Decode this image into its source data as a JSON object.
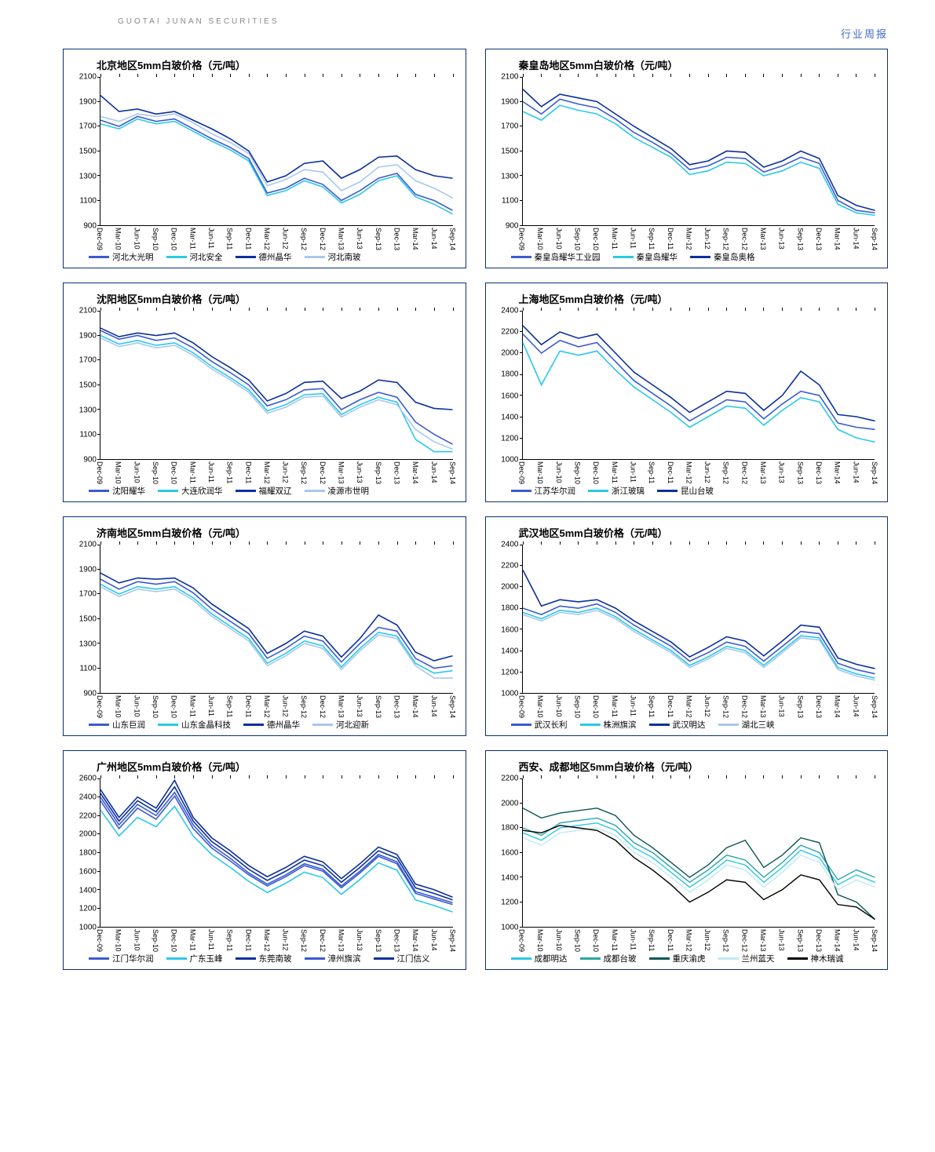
{
  "header": {
    "brand_cn": "",
    "brand_en": "GUOTAI JUNAN SECURITIES",
    "right": "行业周报"
  },
  "x_labels": [
    "Dec-09",
    "Mar-10",
    "Jun-10",
    "Sep-10",
    "Dec-10",
    "Mar-11",
    "Jun-11",
    "Sep-11",
    "Dec-11",
    "Mar-12",
    "Jun-12",
    "Sep-12",
    "Dec-12",
    "Mar-13",
    "Jun-13",
    "Sep-13",
    "Dec-13",
    "Mar-14",
    "Jun-14",
    "Sep-14"
  ],
  "palette": {
    "blue_med": "#3b5bd1",
    "cyan": "#2bc8e8",
    "blue_dark": "#0b2f9e",
    "blue_light": "#a9c7ef",
    "black": "#000000",
    "lightcyan": "#bfe9f2",
    "teal": "#2aa5a5",
    "darkteal": "#0a5757"
  },
  "panels": [
    {
      "id": "beijing",
      "title": "北京地区5mm白玻价格（元/吨）",
      "ymin": 900,
      "ymax": 2100,
      "ystep": 200,
      "series": [
        {
          "name": "河北大光明",
          "color": "blue_med",
          "vals": [
            1750,
            1700,
            1780,
            1740,
            1760,
            1680,
            1600,
            1530,
            1440,
            1160,
            1200,
            1280,
            1230,
            1100,
            1180,
            1280,
            1320,
            1150,
            1100,
            1020
          ]
        },
        {
          "name": "河北安全",
          "color": "cyan",
          "vals": [
            1720,
            1680,
            1760,
            1720,
            1740,
            1660,
            1580,
            1510,
            1420,
            1140,
            1180,
            1260,
            1210,
            1080,
            1150,
            1260,
            1300,
            1130,
            1070,
            990
          ]
        },
        {
          "name": "德州晶华",
          "color": "blue_dark",
          "vals": [
            1950,
            1820,
            1840,
            1800,
            1820,
            1750,
            1680,
            1600,
            1500,
            1250,
            1300,
            1400,
            1420,
            1280,
            1350,
            1450,
            1460,
            1350,
            1300,
            1280
          ]
        },
        {
          "name": "河北南玻",
          "color": "blue_light",
          "vals": [
            1780,
            1740,
            1800,
            1780,
            1800,
            1730,
            1640,
            1570,
            1480,
            1220,
            1270,
            1350,
            1330,
            1180,
            1250,
            1370,
            1390,
            1260,
            1200,
            1120
          ]
        }
      ]
    },
    {
      "id": "qinhuangdao",
      "title": "秦皇岛地区5mm白玻价格（元/吨）",
      "ymin": 900,
      "ymax": 2100,
      "ystep": 200,
      "series": [
        {
          "name": "秦皇岛耀华工业园",
          "color": "blue_med",
          "vals": [
            1900,
            1800,
            1920,
            1880,
            1850,
            1760,
            1650,
            1570,
            1480,
            1350,
            1380,
            1450,
            1440,
            1330,
            1380,
            1450,
            1400,
            1100,
            1020,
            1000
          ]
        },
        {
          "name": "秦皇岛耀华",
          "color": "cyan",
          "vals": [
            1820,
            1750,
            1870,
            1830,
            1800,
            1720,
            1610,
            1530,
            1450,
            1310,
            1340,
            1410,
            1400,
            1300,
            1340,
            1410,
            1360,
            1070,
            1000,
            980
          ]
        },
        {
          "name": "秦皇岛奥格",
          "color": "blue_dark",
          "vals": [
            2000,
            1860,
            1960,
            1930,
            1900,
            1800,
            1700,
            1610,
            1520,
            1390,
            1420,
            1500,
            1490,
            1370,
            1420,
            1500,
            1440,
            1140,
            1060,
            1020
          ]
        }
      ]
    },
    {
      "id": "shenyang",
      "title": "沈阳地区5mm白玻价格（元/吨）",
      "ymin": 900,
      "ymax": 2100,
      "ystep": 200,
      "series": [
        {
          "name": "沈阳耀华",
          "color": "blue_med",
          "vals": [
            1940,
            1870,
            1900,
            1860,
            1880,
            1800,
            1690,
            1600,
            1500,
            1330,
            1380,
            1460,
            1470,
            1300,
            1380,
            1440,
            1400,
            1200,
            1100,
            1020
          ]
        },
        {
          "name": "大连欣润华",
          "color": "cyan",
          "vals": [
            1900,
            1830,
            1860,
            1820,
            1840,
            1760,
            1650,
            1560,
            1460,
            1290,
            1340,
            1420,
            1430,
            1260,
            1340,
            1400,
            1360,
            1060,
            960,
            960
          ]
        },
        {
          "name": "福耀双辽",
          "color": "blue_dark",
          "vals": [
            1960,
            1890,
            1920,
            1900,
            1920,
            1840,
            1730,
            1640,
            1540,
            1370,
            1430,
            1520,
            1530,
            1390,
            1450,
            1540,
            1520,
            1360,
            1310,
            1300
          ]
        },
        {
          "name": "凌源市世明",
          "color": "blue_light",
          "vals": [
            1880,
            1810,
            1840,
            1800,
            1820,
            1740,
            1630,
            1540,
            1440,
            1270,
            1320,
            1400,
            1410,
            1240,
            1320,
            1380,
            1340,
            1140,
            1040,
            980
          ]
        }
      ]
    },
    {
      "id": "shanghai",
      "title": "上海地区5mm白玻价格（元/吨）",
      "ymin": 1000,
      "ymax": 2400,
      "ystep": 200,
      "series": [
        {
          "name": "江苏华尔润",
          "color": "blue_med",
          "vals": [
            2180,
            2000,
            2120,
            2060,
            2100,
            1920,
            1740,
            1620,
            1500,
            1360,
            1460,
            1560,
            1540,
            1380,
            1520,
            1640,
            1600,
            1340,
            1300,
            1280
          ]
        },
        {
          "name": "浙江玻璃",
          "color": "cyan",
          "vals": [
            2100,
            1700,
            2020,
            1980,
            2020,
            1840,
            1680,
            1560,
            1440,
            1300,
            1400,
            1500,
            1480,
            1320,
            1460,
            1580,
            1540,
            1280,
            1200,
            1160
          ]
        },
        {
          "name": "昆山台玻",
          "color": "blue_dark",
          "vals": [
            2260,
            2080,
            2200,
            2140,
            2180,
            2000,
            1820,
            1700,
            1580,
            1440,
            1540,
            1640,
            1620,
            1460,
            1600,
            1830,
            1700,
            1420,
            1400,
            1360
          ]
        }
      ]
    },
    {
      "id": "jinan",
      "title": "济南地区5mm白玻价格（元/吨）",
      "ymin": 900,
      "ymax": 2100,
      "ystep": 200,
      "series": [
        {
          "name": "山东巨润",
          "color": "blue_med",
          "vals": [
            1820,
            1740,
            1800,
            1780,
            1800,
            1710,
            1580,
            1480,
            1380,
            1180,
            1260,
            1360,
            1320,
            1150,
            1300,
            1430,
            1400,
            1180,
            1100,
            1120
          ]
        },
        {
          "name": "山东金晶科技",
          "color": "cyan",
          "vals": [
            1780,
            1700,
            1760,
            1740,
            1760,
            1670,
            1540,
            1440,
            1340,
            1140,
            1220,
            1320,
            1280,
            1110,
            1260,
            1390,
            1360,
            1140,
            1060,
            1080
          ]
        },
        {
          "name": "德州晶华",
          "color": "blue_dark",
          "vals": [
            1870,
            1790,
            1830,
            1820,
            1830,
            1750,
            1620,
            1520,
            1420,
            1220,
            1300,
            1400,
            1360,
            1190,
            1340,
            1530,
            1450,
            1230,
            1160,
            1200
          ]
        },
        {
          "name": "河北迎新",
          "color": "blue_light",
          "vals": [
            1760,
            1680,
            1740,
            1720,
            1740,
            1650,
            1520,
            1420,
            1320,
            1120,
            1200,
            1300,
            1260,
            1090,
            1240,
            1370,
            1340,
            1120,
            1020,
            1020
          ]
        }
      ]
    },
    {
      "id": "wuhan",
      "title": "武汉地区5mm白玻价格（元/吨）",
      "ymin": 1000,
      "ymax": 2400,
      "ystep": 200,
      "series": [
        {
          "name": "武汉长利",
          "color": "blue_med",
          "vals": [
            1800,
            1740,
            1820,
            1800,
            1840,
            1760,
            1640,
            1540,
            1440,
            1300,
            1380,
            1480,
            1440,
            1300,
            1440,
            1580,
            1560,
            1280,
            1220,
            1180
          ]
        },
        {
          "name": "株洲旗滨",
          "color": "cyan",
          "vals": [
            1760,
            1700,
            1780,
            1760,
            1800,
            1720,
            1600,
            1500,
            1400,
            1260,
            1340,
            1440,
            1400,
            1260,
            1400,
            1540,
            1520,
            1240,
            1180,
            1140
          ]
        },
        {
          "name": "武汉明达",
          "color": "blue_dark",
          "vals": [
            2160,
            1820,
            1880,
            1860,
            1880,
            1800,
            1680,
            1580,
            1480,
            1340,
            1430,
            1530,
            1490,
            1350,
            1490,
            1640,
            1620,
            1330,
            1270,
            1230
          ]
        },
        {
          "name": "湖北三峡",
          "color": "blue_light",
          "vals": [
            1740,
            1680,
            1760,
            1740,
            1780,
            1700,
            1580,
            1480,
            1380,
            1240,
            1320,
            1420,
            1380,
            1240,
            1380,
            1520,
            1500,
            1220,
            1160,
            1120
          ]
        }
      ]
    },
    {
      "id": "guangzhou",
      "title": "广州地区5mm白玻价格（元/吨）",
      "ymin": 1000,
      "ymax": 2600,
      "ystep": 200,
      "series": [
        {
          "name": "江门华尔润",
          "color": "blue_med",
          "vals": [
            2400,
            2100,
            2320,
            2200,
            2450,
            2100,
            1880,
            1740,
            1580,
            1460,
            1560,
            1680,
            1620,
            1440,
            1600,
            1780,
            1700,
            1380,
            1320,
            1260
          ]
        },
        {
          "name": "广东玉峰",
          "color": "cyan",
          "vals": [
            2260,
            1980,
            2180,
            2080,
            2300,
            1980,
            1780,
            1640,
            1490,
            1370,
            1470,
            1590,
            1530,
            1350,
            1510,
            1690,
            1610,
            1290,
            1230,
            1160
          ]
        },
        {
          "name": "东莞南玻",
          "color": "blue_dark",
          "vals": [
            2480,
            2180,
            2400,
            2280,
            2580,
            2180,
            1960,
            1820,
            1660,
            1540,
            1640,
            1760,
            1700,
            1520,
            1680,
            1860,
            1780,
            1460,
            1400,
            1320
          ]
        },
        {
          "name": "漳州旗滨",
          "color": "blue_med",
          "vals": [
            2360,
            2060,
            2280,
            2160,
            2410,
            2060,
            1850,
            1710,
            1560,
            1440,
            1540,
            1660,
            1600,
            1420,
            1580,
            1760,
            1680,
            1360,
            1300,
            1240
          ]
        },
        {
          "name": "江门信义",
          "color": "blue_dark",
          "vals": [
            2440,
            2140,
            2360,
            2240,
            2510,
            2140,
            1920,
            1780,
            1620,
            1500,
            1600,
            1720,
            1660,
            1480,
            1640,
            1820,
            1740,
            1420,
            1360,
            1290
          ]
        }
      ]
    },
    {
      "id": "xian",
      "title": "西安、成都地区5mm白玻价格（元/吨）",
      "darkBorder": true,
      "ymin": 1000,
      "ymax": 2200,
      "ystep": 200,
      "series": [
        {
          "name": "成都明达",
          "color": "cyan",
          "vals": [
            1760,
            1700,
            1800,
            1820,
            1840,
            1780,
            1640,
            1560,
            1440,
            1320,
            1420,
            1540,
            1500,
            1360,
            1480,
            1620,
            1560,
            1340,
            1420,
            1360
          ]
        },
        {
          "name": "成都台玻",
          "color": "teal",
          "vals": [
            1800,
            1740,
            1840,
            1860,
            1880,
            1820,
            1680,
            1600,
            1480,
            1360,
            1460,
            1580,
            1540,
            1400,
            1520,
            1660,
            1600,
            1380,
            1460,
            1400
          ]
        },
        {
          "name": "重庆渝虎",
          "color": "darkteal",
          "vals": [
            1960,
            1880,
            1920,
            1940,
            1960,
            1900,
            1740,
            1640,
            1520,
            1400,
            1500,
            1640,
            1700,
            1480,
            1580,
            1720,
            1680,
            1260,
            1200,
            1060
          ]
        },
        {
          "name": "兰州蓝天",
          "color": "lightcyan",
          "vals": [
            1720,
            1660,
            1760,
            1780,
            1800,
            1740,
            1600,
            1520,
            1400,
            1280,
            1380,
            1500,
            1460,
            1320,
            1440,
            1580,
            1520,
            1300,
            1380,
            1320
          ]
        },
        {
          "name": "神木瑞诚",
          "color": "black",
          "vals": [
            1780,
            1760,
            1820,
            1800,
            1780,
            1700,
            1560,
            1460,
            1340,
            1200,
            1280,
            1380,
            1360,
            1220,
            1300,
            1420,
            1380,
            1180,
            1160,
            1060
          ]
        }
      ]
    }
  ]
}
